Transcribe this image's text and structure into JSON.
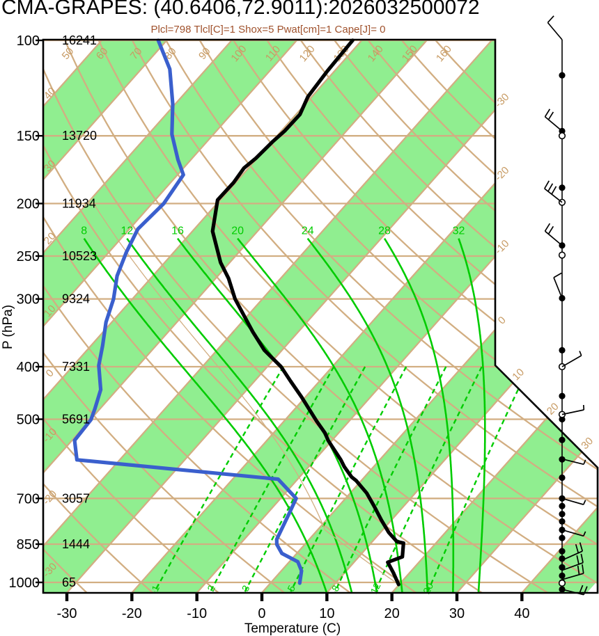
{
  "title": "CMA-GRAPES: (40.6406,72.9011):2026032500072",
  "subtitle": "Plcl=798 Tlcl[C]=1 Shox=5 Pwat[cm]=1 Cape[J]= 0",
  "indices": {
    "plcl": 798,
    "tlcl_c": 1,
    "shox": 5,
    "pwat_cm": 1,
    "cape_j": 0
  },
  "axes": {
    "x_title": "Temperature (C)",
    "y_title": "P (hPa)",
    "x_ticks": [
      -30,
      -20,
      -10,
      0,
      10,
      20,
      30,
      40
    ],
    "pressure_levels": [
      {
        "p": 100,
        "height_m": 16241
      },
      {
        "p": 150,
        "height_m": 13720
      },
      {
        "p": 200,
        "height_m": 11934
      },
      {
        "p": 250,
        "height_m": 10523
      },
      {
        "p": 300,
        "height_m": 9324
      },
      {
        "p": 400,
        "height_m": 7331
      },
      {
        "p": 500,
        "height_m": 5691
      },
      {
        "p": 700,
        "height_m": 3057
      },
      {
        "p": 850,
        "height_m": 1444
      },
      {
        "p": 1000,
        "height_m": 65
      }
    ]
  },
  "chart_data": {
    "type": "skewt_log_p",
    "pressure_range_hpa": [
      100,
      1050
    ],
    "temp_axis_range_c": [
      -30,
      40
    ],
    "isotherm_step_c": 10,
    "isotherm_labels": [
      -30,
      -20,
      -10,
      0,
      10,
      20,
      30
    ],
    "dry_adiabat_labels": [
      -30,
      -20,
      -10,
      0,
      10,
      20,
      30,
      40,
      50,
      60,
      70,
      80,
      90,
      100,
      110,
      120,
      130,
      140,
      150,
      160
    ],
    "moist_adiabats": [
      8,
      12,
      16,
      20,
      24,
      28,
      32
    ],
    "mixing_ratios": [
      1,
      2,
      3,
      5,
      8,
      12,
      20
    ],
    "temperature_profile": [
      [
        100,
        -61.4
      ],
      [
        114,
        -61.1
      ],
      [
        127,
        -60.6
      ],
      [
        137,
        -59.4
      ],
      [
        147,
        -59.5
      ],
      [
        154,
        -59.9
      ],
      [
        165,
        -60.2
      ],
      [
        172,
        -60.7
      ],
      [
        183,
        -60.3
      ],
      [
        197,
        -60.4
      ],
      [
        225,
        -56.9
      ],
      [
        257,
        -51.4
      ],
      [
        275,
        -48.0
      ],
      [
        300,
        -44.2
      ],
      [
        345,
        -37.0
      ],
      [
        373,
        -32.7
      ],
      [
        400,
        -27.9
      ],
      [
        425,
        -24.5
      ],
      [
        455,
        -20.6
      ],
      [
        504,
        -15.0
      ],
      [
        530,
        -12.1
      ],
      [
        547,
        -10.6
      ],
      [
        560,
        -9.3
      ],
      [
        594,
        -6.0
      ],
      [
        612,
        -4.5
      ],
      [
        639,
        -2.0
      ],
      [
        649,
        -0.8
      ],
      [
        684,
        2.5
      ],
      [
        724,
        5.5
      ],
      [
        768,
        8.5
      ],
      [
        809,
        11.3
      ],
      [
        841,
        13.8
      ],
      [
        846,
        15.0
      ],
      [
        897,
        16.7
      ],
      [
        918,
        15.2
      ],
      [
        960,
        17.5
      ],
      [
        1009,
        19.9
      ]
    ],
    "dewpoint_profile": [
      [
        100,
        -91.3
      ],
      [
        113,
        -85.6
      ],
      [
        131,
        -80.4
      ],
      [
        149,
        -76.4
      ],
      [
        166,
        -72.0
      ],
      [
        177,
        -69.1
      ],
      [
        200,
        -68.2
      ],
      [
        223,
        -68.7
      ],
      [
        246,
        -67.3
      ],
      [
        272,
        -65.5
      ],
      [
        300,
        -62.9
      ],
      [
        331,
        -60.9
      ],
      [
        366,
        -58.2
      ],
      [
        398,
        -56.1
      ],
      [
        441,
        -52.5
      ],
      [
        478,
        -50.8
      ],
      [
        501,
        -49.9
      ],
      [
        547,
        -49.6
      ],
      [
        594,
        -46.6
      ],
      [
        645,
        -13.0
      ],
      [
        700,
        -7.6
      ],
      [
        747,
        -6.6
      ],
      [
        833,
        -5.0
      ],
      [
        851,
        -4.3
      ],
      [
        884,
        -2.3
      ],
      [
        916,
        1.3
      ],
      [
        952,
        3.1
      ],
      [
        1003,
        4.5
      ]
    ],
    "parcel": {
      "surface_p": 1009,
      "surface_t": 19.9,
      "lcl_p": 798,
      "lcl_t": 1
    },
    "wind": {
      "dots_p": [
        116,
        147,
        187,
        239,
        299,
        373,
        453,
        500,
        546,
        593,
        641,
        700,
        723,
        748,
        772,
        800,
        828,
        876,
        904,
        938,
        972,
        1000,
        1030
      ],
      "circles_p": [
        150,
        199,
        249,
        400,
        490,
        1003
      ],
      "barbs": [
        {
          "p": 100,
          "ang": -130,
          "full": 1,
          "half": 0
        },
        {
          "p": 147,
          "ang": -140,
          "full": 2,
          "half": 0
        },
        {
          "p": 199,
          "ang": -142,
          "full": 3,
          "half": 0
        },
        {
          "p": 239,
          "ang": -140,
          "full": 2,
          "half": 0
        },
        {
          "p": 299,
          "ang": -112,
          "full": 1,
          "half": 0
        },
        {
          "p": 400,
          "ang": -30,
          "full": 0,
          "half": 1
        },
        {
          "p": 490,
          "ang": -12,
          "full": 0,
          "half": 1
        },
        {
          "p": 592,
          "ang": 14,
          "full": 0,
          "half": 1
        },
        {
          "p": 700,
          "ang": 16,
          "full": 0,
          "half": 1
        },
        {
          "p": 800,
          "ang": 16,
          "full": 0,
          "half": 1
        },
        {
          "p": 910,
          "ang": -24,
          "full": 2,
          "half": 0
        },
        {
          "p": 950,
          "ang": -20,
          "full": 2,
          "half": 0
        },
        {
          "p": 988,
          "ang": -16,
          "full": 2,
          "half": 0
        },
        {
          "p": 1030,
          "ang": 14,
          "full": 2,
          "half": 0
        }
      ]
    }
  },
  "colors": {
    "band_green": "#90EE90",
    "green": "#00CC00",
    "tan": "#D2AE82",
    "tan_label": "#C79A62",
    "temperature": "#000000",
    "dewpoint": "#3A5FCD",
    "subtitle": "#A0522D"
  }
}
